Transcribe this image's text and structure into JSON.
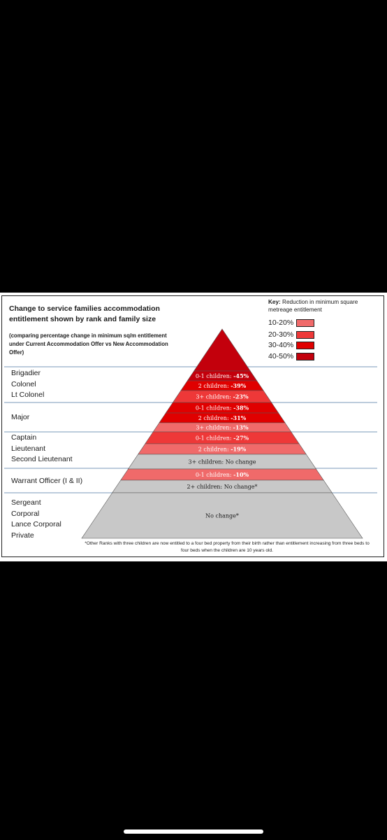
{
  "title": "Change to service families accommodation entitlement shown by rank and family size",
  "subtitle": "(comparing percentage change in minimum sq/m entitlement under Current Accommodation Offer vs New Accommodation Offer)",
  "key": {
    "title_bold": "Key:",
    "title_rest": " Reduction in minimum square metreage entitlement",
    "items": [
      {
        "label": "10-20%",
        "color": "#f06a6a"
      },
      {
        "label": "20-30%",
        "color": "#ee3838"
      },
      {
        "label": "30-40%",
        "color": "#e00000"
      },
      {
        "label": "40-50%",
        "color": "#c3000c"
      }
    ]
  },
  "rank_groups": [
    {
      "ranks": [
        "Brigadier",
        "Colonel",
        "Lt Colonel"
      ]
    },
    {
      "ranks": [
        "Major"
      ]
    },
    {
      "ranks": [
        "Captain",
        "Lieutenant",
        "Second Lieutenant"
      ]
    },
    {
      "ranks": [
        "Warrant Officer (I & II)"
      ]
    },
    {
      "ranks": [
        "Sergeant",
        "Corporal",
        "Lance Corporal",
        "Private"
      ]
    }
  ],
  "bands": [
    {
      "label": "0-1 children: ",
      "value": "-45%",
      "change_pct": -45,
      "color": "#c3000c"
    },
    {
      "label": "2 children: ",
      "value": "-39%",
      "change_pct": -39,
      "color": "#e00000"
    },
    {
      "label": "3+ children: ",
      "value": "-23%",
      "change_pct": -23,
      "color": "#ee3838"
    },
    {
      "label": "0-1 children: ",
      "value": "-38%",
      "change_pct": -38,
      "color": "#e00000"
    },
    {
      "label": "2 children: ",
      "value": "-31%",
      "change_pct": -31,
      "color": "#e00000"
    },
    {
      "label": "3+ children: ",
      "value": "-13%",
      "change_pct": -13,
      "color": "#f06a6a"
    },
    {
      "label": "0-1 children: ",
      "value": "-27%",
      "change_pct": -27,
      "color": "#ee3838"
    },
    {
      "label": "2 children: ",
      "value": "-19%",
      "change_pct": -19,
      "color": "#f06a6a"
    },
    {
      "label": "3+ children: No change",
      "value": "",
      "change_pct": 0,
      "color": "#c8c8c8"
    },
    {
      "label": "0-1 children: ",
      "value": "-10%",
      "change_pct": -10,
      "color": "#f06a6a"
    },
    {
      "label": "2+ children: No change*",
      "value": "",
      "change_pct": 0,
      "color": "#c8c8c8"
    },
    {
      "label": "No change*",
      "value": "",
      "change_pct": 0,
      "color": "#c8c8c8"
    }
  ],
  "tip_color": "#c3000c",
  "footnote": "*Other Ranks with three children are now entitled to a four bed property from their birth rather than entitlement increasing from three beds to four beds when the children are 10 years old."
}
